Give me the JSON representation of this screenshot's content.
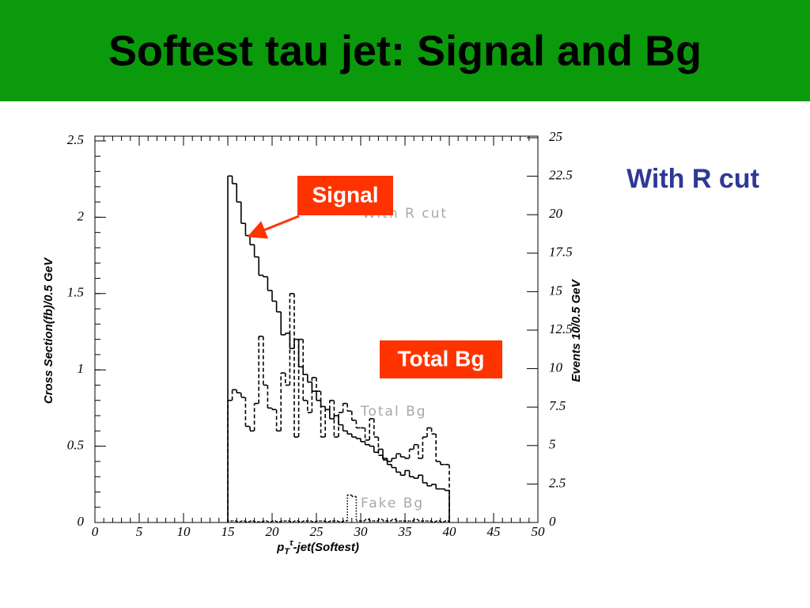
{
  "slide": {
    "title": "Softest tau jet: Signal and Bg",
    "side_note": "With R cut"
  },
  "chart_data": {
    "type": "histogram",
    "ylabel": "Cross Section(fb)/0.5 GeV",
    "y2label": "Events 10/0.5 GeV",
    "xlabel": {
      "base": "p",
      "sub": "T",
      "sup": "τ",
      "rest": "-jet(Softest)"
    },
    "xlim": [
      0,
      50
    ],
    "xticks": [
      0,
      5,
      10,
      15,
      20,
      25,
      30,
      35,
      40,
      45,
      50
    ],
    "ylim": [
      0,
      2.5
    ],
    "yticks": [
      0,
      0.5,
      1,
      1.5,
      2,
      2.5
    ],
    "y2lim": [
      0,
      25
    ],
    "y2ticks": [
      0,
      2.5,
      5,
      7.5,
      10,
      12.5,
      15,
      17.5,
      20,
      22.5,
      25
    ],
    "bins": [
      15,
      15.5,
      16,
      16.5,
      17,
      17.5,
      18,
      18.5,
      19,
      19.5,
      20,
      20.5,
      21,
      21.5,
      22,
      22.5,
      23,
      23.5,
      24,
      24.5,
      25,
      25.5,
      26,
      26.5,
      27,
      27.5,
      28,
      28.5,
      29,
      29.5,
      30,
      30.5,
      31,
      31.5,
      32,
      32.5,
      33,
      33.5,
      34,
      34.5,
      35,
      35.5,
      36,
      36.5,
      37,
      37.5,
      38,
      38.5,
      39,
      39.5,
      40
    ],
    "series": [
      {
        "color": "#000000",
        "dash": "solid",
        "values": [
          2.27,
          2.22,
          2.1,
          1.96,
          1.88,
          1.82,
          1.74,
          1.62,
          1.61,
          1.52,
          1.45,
          1.38,
          1.23,
          1.24,
          1.14,
          1.2,
          1.02,
          0.97,
          0.92,
          0.86,
          0.8,
          0.76,
          0.74,
          0.68,
          0.7,
          0.64,
          0.6,
          0.58,
          0.56,
          0.55,
          0.53,
          0.51,
          0.5,
          0.46,
          0.48,
          0.42,
          0.38,
          0.36,
          0.33,
          0.31,
          0.34,
          0.3,
          0.29,
          0.31,
          0.26,
          0.24,
          0.25,
          0.22,
          0.22,
          0.21
        ]
      },
      {
        "color": "#000000",
        "dash": "dashed",
        "values": [
          0.8,
          0.87,
          0.85,
          0.82,
          0.63,
          0.6,
          0.78,
          1.22,
          0.9,
          0.75,
          0.74,
          0.6,
          0.98,
          0.9,
          1.5,
          0.56,
          1.2,
          0.8,
          0.72,
          0.95,
          0.86,
          0.56,
          0.74,
          0.8,
          0.56,
          0.72,
          0.78,
          0.73,
          0.67,
          0.62,
          0.62,
          0.54,
          0.68,
          0.56,
          0.44,
          0.41,
          0.4,
          0.42,
          0.45,
          0.43,
          0.42,
          0.48,
          0.51,
          0.42,
          0.56,
          0.62,
          0.58,
          0.4,
          0.38,
          0.38
        ]
      },
      {
        "color": "#000000",
        "dash": "dotted",
        "values": [
          0.01,
          0.01,
          0.005,
          0.01,
          0.005,
          0.01,
          0.005,
          0.005,
          0.01,
          0.005,
          0.01,
          0.005,
          0.01,
          0.01,
          0.005,
          0.01,
          0.005,
          0.01,
          0.01,
          0.005,
          0.01,
          0.01,
          0.005,
          0.01,
          0.01,
          0.005,
          0.01,
          0.18,
          0.17,
          0.01,
          0.01,
          0.02,
          0.01,
          0.01,
          0.02,
          0.01,
          0.01,
          0.02,
          0.01,
          0.01,
          0.01,
          0.01,
          0.02,
          0.01,
          0.01,
          0.01,
          0.005,
          0.01,
          0.005,
          0.01
        ]
      }
    ],
    "annotations": [
      {
        "text": "Signal",
        "color": "#ff3300"
      },
      {
        "text": "Total Bg",
        "color": "#ff3300"
      }
    ],
    "curve_labels": [
      "With R cut",
      "Total Bg",
      "Fake Bg"
    ]
  }
}
